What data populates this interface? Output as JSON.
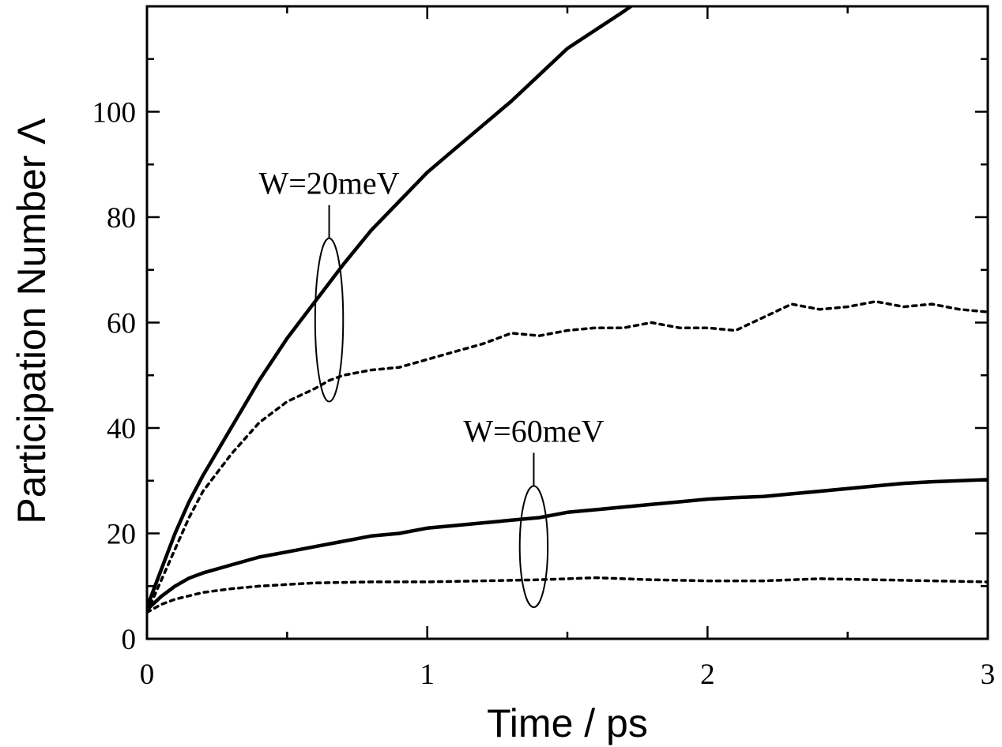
{
  "chart_data": {
    "type": "line",
    "title": "",
    "xlabel": "Time / ps",
    "ylabel": "Participation Number",
    "ylabel_symbol": "Λ",
    "xlim": [
      0,
      3
    ],
    "ylim": [
      0,
      120
    ],
    "xticks": [
      0,
      1,
      2,
      3
    ],
    "xtick_labels": [
      "0",
      "1",
      "2",
      "3"
    ],
    "yticks": [
      0,
      20,
      40,
      60,
      80,
      100
    ],
    "ytick_labels": [
      "0",
      "20",
      "40",
      "60",
      "80",
      "100"
    ],
    "grid": false,
    "legend": "none",
    "series": [
      {
        "group": "W=20meV",
        "style": "solid",
        "x": [
          0,
          0.05,
          0.1,
          0.15,
          0.2,
          0.3,
          0.4,
          0.5,
          0.6,
          0.7,
          0.8,
          0.9,
          1.0,
          1.1,
          1.2,
          1.3,
          1.4,
          1.5,
          1.6,
          1.7,
          1.74
        ],
        "y": [
          6,
          13,
          20,
          26,
          31,
          40,
          49,
          57,
          64,
          71,
          77.5,
          83,
          88.5,
          93,
          97.5,
          102,
          107,
          112,
          115.5,
          119,
          120.5
        ]
      },
      {
        "group": "W=20meV",
        "style": "dotted",
        "x": [
          0,
          0.05,
          0.1,
          0.15,
          0.2,
          0.3,
          0.4,
          0.5,
          0.6,
          0.65,
          0.7,
          0.8,
          0.9,
          1.0,
          1.1,
          1.2,
          1.3,
          1.4,
          1.5,
          1.6,
          1.7,
          1.8,
          1.9,
          2.0,
          2.1,
          2.2,
          2.3,
          2.4,
          2.5,
          2.6,
          2.7,
          2.8,
          2.9,
          3.0
        ],
        "y": [
          5,
          11,
          17,
          23,
          28,
          35,
          41,
          45,
          47.5,
          49,
          50,
          51,
          51.5,
          53,
          54.5,
          56,
          58,
          57.5,
          58.5,
          59,
          59,
          60,
          59,
          59,
          58.5,
          61,
          63.5,
          62.5,
          63,
          64,
          63,
          63.5,
          62.5,
          62
        ]
      },
      {
        "group": "W=60meV",
        "style": "solid",
        "x": [
          0,
          0.05,
          0.1,
          0.15,
          0.2,
          0.3,
          0.4,
          0.5,
          0.6,
          0.7,
          0.8,
          0.9,
          1.0,
          1.1,
          1.2,
          1.3,
          1.4,
          1.5,
          1.6,
          1.7,
          1.8,
          1.9,
          2.0,
          2.1,
          2.2,
          2.3,
          2.4,
          2.5,
          2.6,
          2.7,
          2.8,
          2.9,
          3.0
        ],
        "y": [
          5.5,
          8,
          10,
          11.5,
          12.5,
          14,
          15.5,
          16.5,
          17.5,
          18.5,
          19.5,
          20,
          21,
          21.5,
          22,
          22.5,
          23,
          24,
          24.5,
          25,
          25.5,
          26,
          26.5,
          26.8,
          27,
          27.5,
          28,
          28.5,
          29,
          29.5,
          29.8,
          30,
          30.2
        ]
      },
      {
        "group": "W=60meV",
        "style": "dotted",
        "x": [
          0,
          0.05,
          0.1,
          0.2,
          0.3,
          0.4,
          0.5,
          0.6,
          0.8,
          1.0,
          1.2,
          1.4,
          1.6,
          1.8,
          2.0,
          2.2,
          2.4,
          2.6,
          2.8,
          3.0
        ],
        "y": [
          5,
          6.5,
          7.5,
          8.8,
          9.5,
          10,
          10.3,
          10.6,
          10.8,
          10.8,
          11,
          11.2,
          11.6,
          11.2,
          11,
          11,
          11.4,
          11.2,
          11,
          10.8
        ]
      }
    ],
    "annotations": [
      {
        "label": "W=20meV",
        "x": 0.65,
        "y": 60.5,
        "x_radius": 0.05,
        "y_radius": 15.5
      },
      {
        "label": "W=60meV",
        "x": 1.38,
        "y": 17.5,
        "x_radius": 0.05,
        "y_radius": 11.5
      }
    ]
  }
}
